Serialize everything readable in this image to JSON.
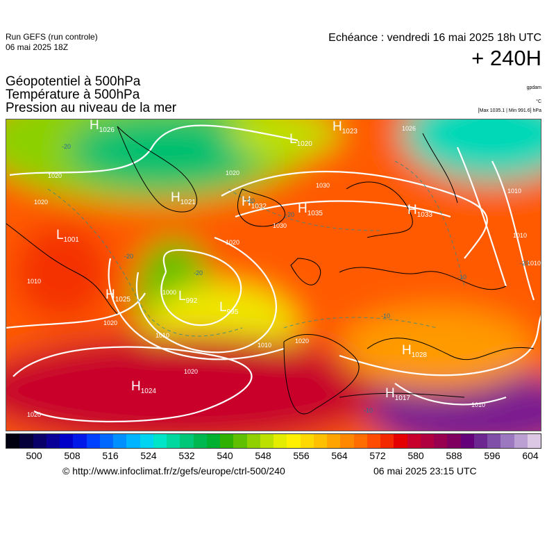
{
  "header": {
    "run_model": "Run GEFS (run controle)",
    "run_date": "06 mai 2025 18Z",
    "valid_time": "Echéance : vendredi 16 mai 2025 18h UTC",
    "lead_time": "+ 240H"
  },
  "fields": {
    "line1": "Géopotentiel à 500hPa",
    "line2": "Température à 500hPa",
    "line3": "Pression au niveau de la mer"
  },
  "units": {
    "geopotential": "gpdam",
    "temperature": "°C",
    "pressure_range": "[Max 1035.1 | Min 991.6] hPa"
  },
  "pressure_centers": [
    {
      "type": "H",
      "value": "1026"
    },
    {
      "type": "L",
      "value": "1020"
    },
    {
      "type": "H",
      "value": "1023"
    },
    {
      "type": "H",
      "value": "1021"
    },
    {
      "type": "H",
      "value": "1032"
    },
    {
      "type": "H",
      "value": "1035"
    },
    {
      "type": "H",
      "value": "1033"
    },
    {
      "type": "L",
      "value": "1001"
    },
    {
      "type": "H",
      "value": "1025"
    },
    {
      "type": "L",
      "value": "992"
    },
    {
      "type": "L",
      "value": "995"
    },
    {
      "type": "H",
      "value": "1024"
    },
    {
      "type": "H",
      "value": "1017"
    },
    {
      "type": "H",
      "value": "1028"
    }
  ],
  "isobar_labels": [
    "1026",
    "1020",
    "1020",
    "1010",
    "1030",
    "1020",
    "1030",
    "1020",
    "1010",
    "1000",
    "1010",
    "1020",
    "1020",
    "1010",
    "1010",
    "1020",
    "1020",
    "1010",
    "1010"
  ],
  "isotherm_labels": [
    "-20",
    "-20",
    "-20",
    "-20",
    "-20",
    "-10",
    "-10",
    "-10",
    "-20"
  ],
  "colorbar": {
    "colors": [
      "#000010",
      "#06003a",
      "#0a006a",
      "#0a0098",
      "#0000c8",
      "#0018e8",
      "#0040ff",
      "#0068ff",
      "#0090ff",
      "#00b4ff",
      "#00d4f0",
      "#00e4c8",
      "#00d8a0",
      "#00c878",
      "#00b850",
      "#00b030",
      "#30b000",
      "#60c000",
      "#90d000",
      "#bce000",
      "#e4ec00",
      "#fff000",
      "#ffd800",
      "#ffc000",
      "#ffa400",
      "#ff8800",
      "#ff6c00",
      "#ff4c00",
      "#f42800",
      "#e40000",
      "#c8002c",
      "#b00040",
      "#980050",
      "#800060",
      "#64007a",
      "#6c2890",
      "#8050a8",
      "#9c78c0",
      "#bca0d4",
      "#dcc8e4"
    ],
    "ticks": [
      "500",
      "508",
      "516",
      "524",
      "532",
      "540",
      "548",
      "556",
      "564",
      "572",
      "580",
      "588",
      "596",
      "604"
    ],
    "tick_min": 500,
    "tick_max": 604
  },
  "footer": {
    "source_url": "© http://www.infoclimat.fr/z/gefs/europe/ctrl-500/240",
    "generated": "06 mai 2025 23:15 UTC"
  }
}
